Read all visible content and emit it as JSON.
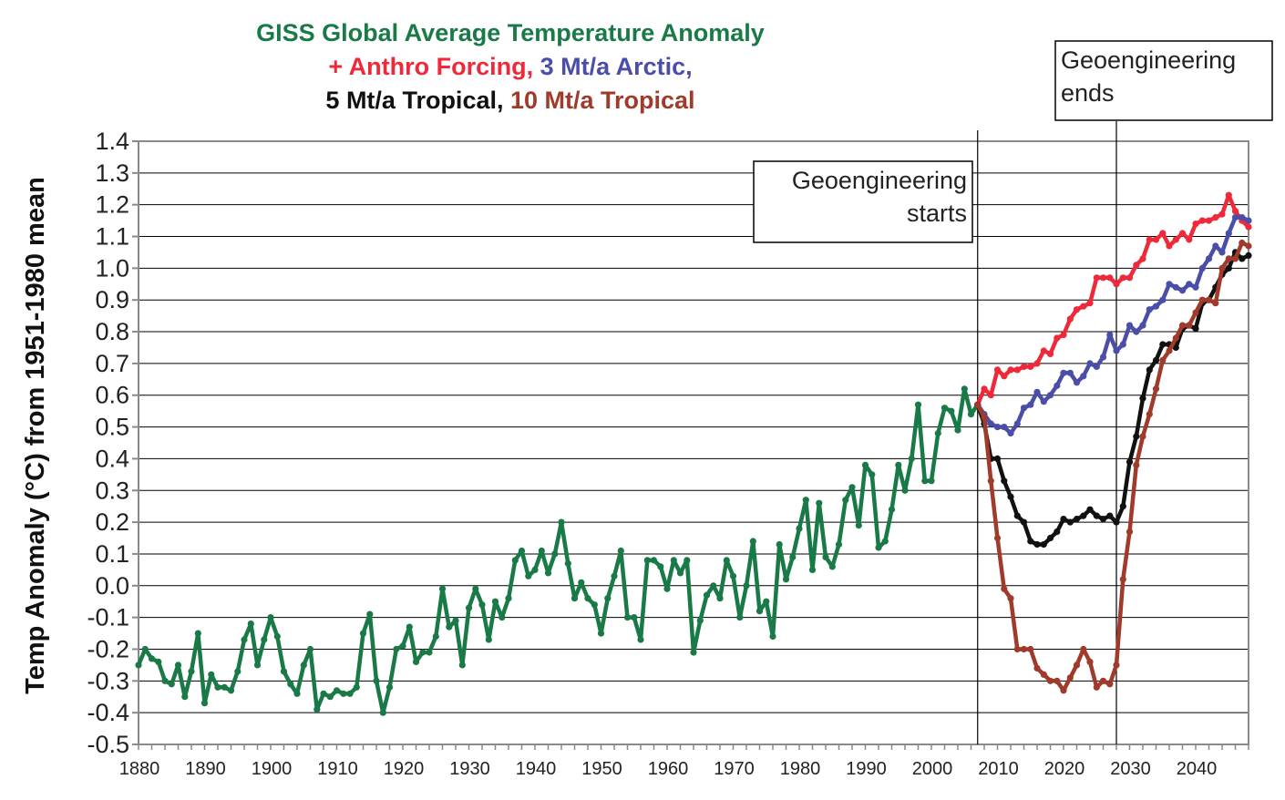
{
  "colors": {
    "green": "#1a7a47",
    "red": "#ee2a3a",
    "blue": "#4a4ea8",
    "black": "#111111",
    "brown": "#a03a2a"
  },
  "chart_data": {
    "type": "line",
    "title_lines": [
      [
        {
          "text": "GISS Global Average Temperature Anomaly",
          "color": "green"
        }
      ],
      [
        {
          "text": "+ Anthro Forcing,",
          "color": "red"
        },
        {
          "text": " 3 Mt/a   Arctic,",
          "color": "blue"
        }
      ],
      [
        {
          "text": "5 Mt/a Tropical,",
          "color": "black"
        },
        {
          "text": " 10 Mt/a Tropical",
          "color": "brown"
        }
      ]
    ],
    "ylabel": "Temp Anomaly (°C) from 1951-1980 mean",
    "xlabel": "",
    "xlim": [
      1880,
      2048
    ],
    "ylim": [
      -0.5,
      1.4
    ],
    "y_ticks": [
      "1.4",
      "1.3",
      "1.2",
      "1.1",
      "1.0",
      "0.9",
      "0.8",
      "0.7",
      "0.6",
      "0.5",
      "0.4",
      "0.3",
      "0.2",
      "0.1",
      "0.0",
      "-0.1",
      "-0.2",
      "-0.3",
      "-0.4",
      "-0.5"
    ],
    "y_tick_values": [
      1.4,
      1.3,
      1.2,
      1.1,
      1.0,
      0.9,
      0.8,
      0.7,
      0.6,
      0.5,
      0.4,
      0.3,
      0.2,
      0.1,
      0.0,
      -0.1,
      -0.2,
      -0.3,
      -0.4,
      -0.5
    ],
    "x_ticks": [
      "1880",
      "1890",
      "1900",
      "1910",
      "1920",
      "1930",
      "1940",
      "1950",
      "1960",
      "1970",
      "1980",
      "1990",
      "2000",
      "2010",
      "2020",
      "2030",
      "2040"
    ],
    "x_tick_values": [
      1880,
      1890,
      1900,
      1910,
      1920,
      1930,
      1940,
      1950,
      1960,
      1970,
      1980,
      1990,
      2000,
      2010,
      2020,
      2030,
      2040
    ],
    "grid": "horizontal",
    "annotations": [
      {
        "lines": [
          "Geoengineering",
          "starts"
        ],
        "align": "right",
        "year": 2007
      },
      {
        "lines": [
          "Geoengineering",
          "ends"
        ],
        "align": "left",
        "year": 2028
      }
    ],
    "series": [
      {
        "color": "green",
        "x": [
          1880,
          1881,
          1882,
          1883,
          1884,
          1885,
          1886,
          1887,
          1888,
          1889,
          1890,
          1891,
          1892,
          1893,
          1894,
          1895,
          1896,
          1897,
          1898,
          1899,
          1900,
          1901,
          1902,
          1903,
          1904,
          1905,
          1906,
          1907,
          1908,
          1909,
          1910,
          1911,
          1912,
          1913,
          1914,
          1915,
          1916,
          1917,
          1918,
          1919,
          1920,
          1921,
          1922,
          1923,
          1924,
          1925,
          1926,
          1927,
          1928,
          1929,
          1930,
          1931,
          1932,
          1933,
          1934,
          1935,
          1936,
          1937,
          1938,
          1939,
          1940,
          1941,
          1942,
          1943,
          1944,
          1945,
          1946,
          1947,
          1948,
          1949,
          1950,
          1951,
          1952,
          1953,
          1954,
          1955,
          1956,
          1957,
          1958,
          1959,
          1960,
          1961,
          1962,
          1963,
          1964,
          1965,
          1966,
          1967,
          1968,
          1969,
          1970,
          1971,
          1972,
          1973,
          1974,
          1975,
          1976,
          1977,
          1978,
          1979,
          1980,
          1981,
          1982,
          1983,
          1984,
          1985,
          1986,
          1987,
          1988,
          1989,
          1990,
          1991,
          1992,
          1993,
          1994,
          1995,
          1996,
          1997,
          1998,
          1999,
          2000,
          2001,
          2002,
          2003,
          2004,
          2005,
          2006,
          2007
        ],
        "y": [
          -0.25,
          -0.2,
          -0.23,
          -0.24,
          -0.3,
          -0.31,
          -0.25,
          -0.35,
          -0.27,
          -0.15,
          -0.37,
          -0.28,
          -0.32,
          -0.32,
          -0.33,
          -0.27,
          -0.17,
          -0.12,
          -0.25,
          -0.17,
          -0.1,
          -0.16,
          -0.27,
          -0.31,
          -0.34,
          -0.25,
          -0.2,
          -0.39,
          -0.34,
          -0.35,
          -0.33,
          -0.34,
          -0.34,
          -0.32,
          -0.15,
          -0.09,
          -0.3,
          -0.4,
          -0.32,
          -0.2,
          -0.19,
          -0.13,
          -0.24,
          -0.21,
          -0.21,
          -0.16,
          -0.01,
          -0.13,
          -0.11,
          -0.25,
          -0.07,
          -0.01,
          -0.06,
          -0.17,
          -0.05,
          -0.1,
          -0.04,
          0.08,
          0.11,
          0.03,
          0.05,
          0.11,
          0.04,
          0.1,
          0.2,
          0.07,
          -0.04,
          0.01,
          -0.04,
          -0.06,
          -0.15,
          -0.04,
          0.03,
          0.11,
          -0.1,
          -0.1,
          -0.17,
          0.08,
          0.08,
          0.06,
          -0.01,
          0.08,
          0.04,
          0.08,
          -0.21,
          -0.11,
          -0.03,
          0.0,
          -0.04,
          0.08,
          0.03,
          -0.1,
          0.0,
          0.14,
          -0.08,
          -0.05,
          -0.16,
          0.13,
          0.02,
          0.09,
          0.18,
          0.27,
          0.05,
          0.26,
          0.09,
          0.06,
          0.13,
          0.27,
          0.31,
          0.19,
          0.38,
          0.35,
          0.12,
          0.14,
          0.24,
          0.38,
          0.3,
          0.4,
          0.57,
          0.33,
          0.33,
          0.48,
          0.56,
          0.55,
          0.49,
          0.62,
          0.54,
          0.57
        ]
      },
      {
        "color": "red",
        "x": [
          2007,
          2008,
          2009,
          2010,
          2011,
          2012,
          2013,
          2014,
          2015,
          2016,
          2017,
          2018,
          2019,
          2020,
          2021,
          2022,
          2023,
          2024,
          2025,
          2026,
          2027,
          2028,
          2029,
          2030,
          2031,
          2032,
          2033,
          2034,
          2035,
          2036,
          2037,
          2038,
          2039,
          2040,
          2041,
          2042,
          2043,
          2044,
          2045,
          2046,
          2047,
          2048
        ],
        "y": [
          0.57,
          0.62,
          0.6,
          0.68,
          0.66,
          0.68,
          0.68,
          0.69,
          0.69,
          0.7,
          0.74,
          0.73,
          0.78,
          0.79,
          0.84,
          0.87,
          0.88,
          0.89,
          0.97,
          0.97,
          0.97,
          0.95,
          0.97,
          0.97,
          1.01,
          1.03,
          1.09,
          1.09,
          1.11,
          1.07,
          1.09,
          1.11,
          1.09,
          1.14,
          1.15,
          1.15,
          1.16,
          1.17,
          1.23,
          1.18,
          1.15,
          1.13
        ]
      },
      {
        "color": "blue",
        "x": [
          2007,
          2008,
          2009,
          2010,
          2011,
          2012,
          2013,
          2014,
          2015,
          2016,
          2017,
          2018,
          2019,
          2020,
          2021,
          2022,
          2023,
          2024,
          2025,
          2026,
          2027,
          2028,
          2029,
          2030,
          2031,
          2032,
          2033,
          2034,
          2035,
          2036,
          2037,
          2038,
          2039,
          2040,
          2041,
          2042,
          2043,
          2044,
          2045,
          2046,
          2047,
          2048
        ],
        "y": [
          0.57,
          0.54,
          0.51,
          0.5,
          0.5,
          0.48,
          0.51,
          0.56,
          0.57,
          0.61,
          0.58,
          0.6,
          0.63,
          0.67,
          0.67,
          0.64,
          0.66,
          0.7,
          0.69,
          0.72,
          0.79,
          0.74,
          0.76,
          0.82,
          0.8,
          0.82,
          0.87,
          0.88,
          0.9,
          0.95,
          0.94,
          0.93,
          0.95,
          0.94,
          1.0,
          1.03,
          1.07,
          1.05,
          1.11,
          1.16,
          1.16,
          1.15
        ]
      },
      {
        "color": "black",
        "x": [
          2007,
          2008,
          2009,
          2010,
          2011,
          2012,
          2013,
          2014,
          2015,
          2016,
          2017,
          2018,
          2019,
          2020,
          2021,
          2022,
          2023,
          2024,
          2025,
          2026,
          2027,
          2028,
          2029,
          2030,
          2031,
          2032,
          2033,
          2034,
          2035,
          2036,
          2037,
          2038,
          2039,
          2040,
          2041,
          2042,
          2043,
          2044,
          2045,
          2046,
          2047,
          2048
        ],
        "y": [
          0.57,
          0.51,
          0.4,
          0.4,
          0.33,
          0.28,
          0.22,
          0.2,
          0.14,
          0.13,
          0.13,
          0.15,
          0.17,
          0.21,
          0.2,
          0.21,
          0.22,
          0.24,
          0.22,
          0.21,
          0.22,
          0.2,
          0.25,
          0.39,
          0.47,
          0.59,
          0.68,
          0.71,
          0.76,
          0.76,
          0.75,
          0.81,
          0.82,
          0.81,
          0.89,
          0.9,
          0.94,
          0.98,
          1.0,
          1.05,
          1.03,
          1.04
        ]
      },
      {
        "color": "brown",
        "x": [
          2007,
          2008,
          2009,
          2010,
          2011,
          2012,
          2013,
          2014,
          2015,
          2016,
          2017,
          2018,
          2019,
          2020,
          2021,
          2022,
          2023,
          2024,
          2025,
          2026,
          2027,
          2028,
          2029,
          2030,
          2031,
          2032,
          2033,
          2034,
          2035,
          2036,
          2037,
          2038,
          2039,
          2040,
          2041,
          2042,
          2043,
          2044,
          2045,
          2046,
          2047,
          2048
        ],
        "y": [
          0.57,
          0.53,
          0.33,
          0.15,
          -0.01,
          -0.04,
          -0.2,
          -0.2,
          -0.2,
          -0.26,
          -0.28,
          -0.3,
          -0.3,
          -0.33,
          -0.29,
          -0.25,
          -0.2,
          -0.24,
          -0.32,
          -0.3,
          -0.31,
          -0.25,
          0.02,
          0.17,
          0.38,
          0.47,
          0.54,
          0.62,
          0.71,
          0.74,
          0.78,
          0.82,
          0.82,
          0.86,
          0.9,
          0.9,
          0.89,
          1.0,
          1.03,
          1.03,
          1.08,
          1.07
        ]
      }
    ]
  }
}
